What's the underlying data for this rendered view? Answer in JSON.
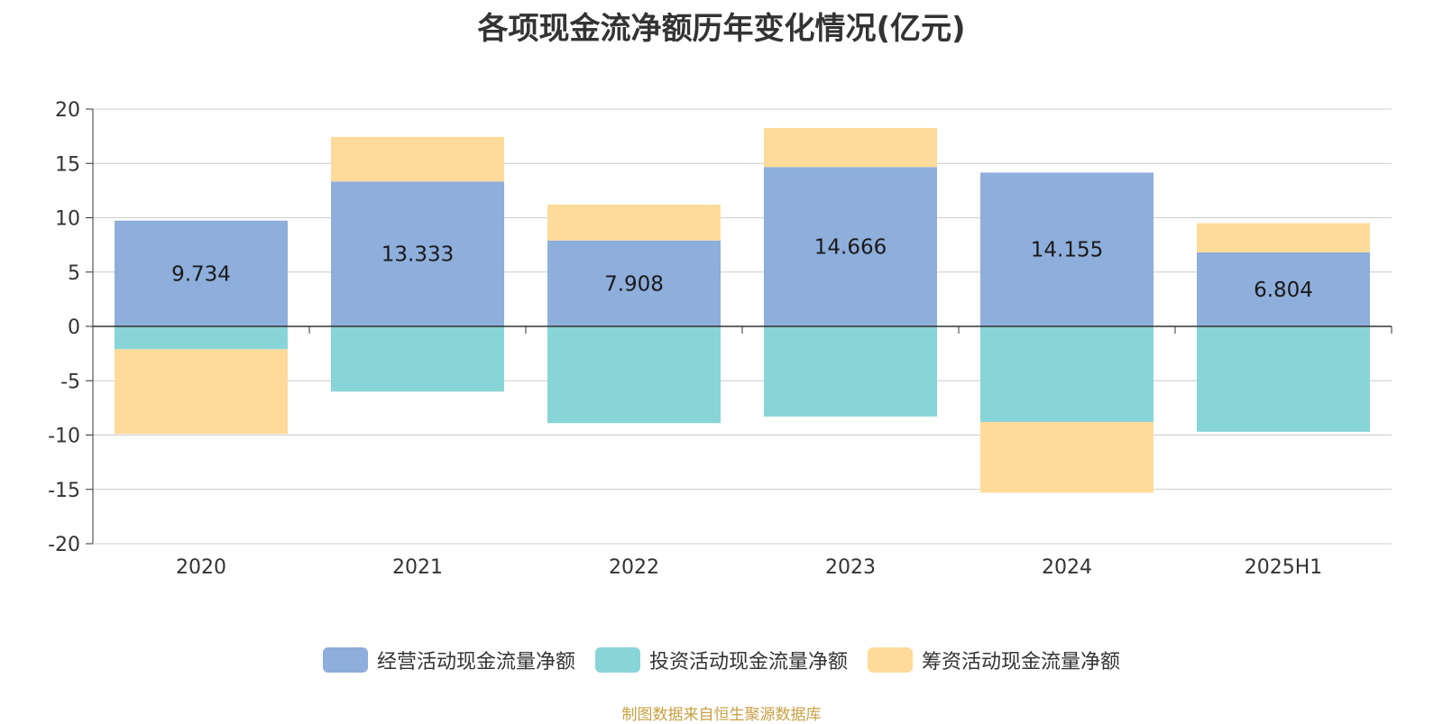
{
  "chart_data": {
    "type": "bar",
    "stacked": true,
    "title": "各项现金流净额历年变化情况(亿元)",
    "categories": [
      "2020",
      "2021",
      "2022",
      "2023",
      "2024",
      "2025H1"
    ],
    "ylim": [
      -20,
      20
    ],
    "yticks": [
      20,
      15,
      10,
      5,
      0,
      -5,
      -10,
      -15,
      -20
    ],
    "grid": true,
    "legend_position": "bottom",
    "series": [
      {
        "name": "经营活动现金流量净额",
        "color": "#8eaedb",
        "values": [
          9.734,
          13.333,
          7.908,
          14.666,
          14.155,
          6.804
        ],
        "labels": [
          "9.734",
          "13.333",
          "7.908",
          "14.666",
          "14.155",
          "6.804"
        ]
      },
      {
        "name": "投资活动现金流量净额",
        "color": "#88d5d8",
        "values": [
          -2.1,
          -6.0,
          -8.9,
          -8.3,
          -8.8,
          -9.7
        ]
      },
      {
        "name": "筹资活动现金流量净额",
        "color": "#fedb9a",
        "values": [
          -7.8,
          4.1,
          3.3,
          3.6,
          -6.5,
          2.7
        ]
      }
    ]
  },
  "footer": "制图数据来自恒生聚源数据库"
}
